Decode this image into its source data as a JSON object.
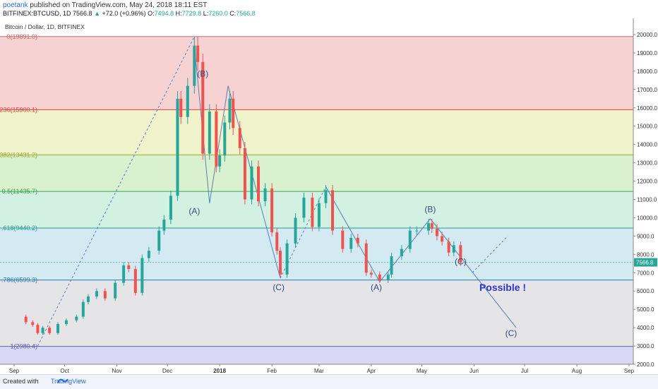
{
  "header": {
    "user": "poetank",
    "published_text": "published on TradingView.com, May 24, 2018 18:11 EST",
    "symbol": "BITFINEX:BTCUSD, 1D",
    "last_price": "7566.8",
    "change": "+72.0 (+0.96%)",
    "open_label": "O:",
    "open": "7494.8",
    "high_label": "H:",
    "high": "7729.8",
    "low_label": "L:",
    "low": "7260.0",
    "close_label": "C:",
    "close": "7566.8"
  },
  "footer": {
    "created_with": "Created with",
    "brand": "TradingView"
  },
  "colors": {
    "up": "#26a69a",
    "down": "#ef5350",
    "wave": "#5b7fb8",
    "text_blue": "#2e35c4"
  },
  "chart_data": {
    "type": "candlestick",
    "title": "Bitcoin / Dollar, 1D, BITFINEX",
    "ylim": [
      2000,
      20500
    ],
    "y_ticks": [
      "2000.0",
      "3000.0",
      "4000.0",
      "5000.0",
      "6000.0",
      "7000.0",
      "8000.0",
      "9000.0",
      "10000.0",
      "11000.0",
      "12000.0",
      "13000.0",
      "14000.0",
      "15000.0",
      "16000.0",
      "17000.0",
      "18000.0",
      "19000.0",
      "20000.0"
    ],
    "x_ticks": [
      "Sep",
      "Oct",
      "Nov",
      "Dec",
      "2018",
      "Feb",
      "Mar",
      "Apr",
      "May",
      "Jun",
      "Jul",
      "Aug",
      "Sep"
    ],
    "current_price_label": "7566.8",
    "fib_levels": [
      {
        "label": "0(19891.0)",
        "value": 19891.0,
        "color": "#c86b6b"
      },
      {
        "label": "236(15900.1)",
        "value": 15900.1,
        "color": "#e0403a"
      },
      {
        "label": "382(13431.2)",
        "value": 13431.2,
        "color": "#9aaa2a"
      },
      {
        "label": "0.5(11435.7)",
        "value": 11435.7,
        "color": "#3aa34a"
      },
      {
        "label": ".618(9440.2)",
        "value": 9440.2,
        "color": "#2a9a9a"
      },
      {
        "label": ".786(6599.3)",
        "value": 6599.3,
        "color": "#2a7ab0"
      },
      {
        "label": "1(2980.4)",
        "value": 2980.4,
        "color": "#5b5fb0"
      }
    ],
    "fib_zones": [
      {
        "from": 15900.1,
        "to": 19891.0,
        "color": "#f6d2d2"
      },
      {
        "from": 13431.2,
        "to": 15900.1,
        "color": "#f0f2cc"
      },
      {
        "from": 11435.7,
        "to": 13431.2,
        "color": "#d9f1cf"
      },
      {
        "from": 9440.2,
        "to": 11435.7,
        "color": "#d2f1e3"
      },
      {
        "from": 6599.3,
        "to": 9440.2,
        "color": "#d3eaf3"
      },
      {
        "from": 2980.4,
        "to": 6599.3,
        "color": "#e5e5e8"
      },
      {
        "from": 2000,
        "to": 2980.4,
        "color": "#d9d8f2"
      }
    ],
    "closes": [
      [
        "2017-09-05",
        4600
      ],
      [
        "2017-09-08",
        4300
      ],
      [
        "2017-09-12",
        4150
      ],
      [
        "2017-09-15",
        3700
      ],
      [
        "2017-09-18",
        4000
      ],
      [
        "2017-09-22",
        3700
      ],
      [
        "2017-09-27",
        4200
      ],
      [
        "2017-10-02",
        4400
      ],
      [
        "2017-10-08",
        4600
      ],
      [
        "2017-10-12",
        5400
      ],
      [
        "2017-10-15",
        5700
      ],
      [
        "2017-10-20",
        6000
      ],
      [
        "2017-10-25",
        5600
      ],
      [
        "2017-10-31",
        6450
      ],
      [
        "2017-11-05",
        7400
      ],
      [
        "2017-11-08",
        7200
      ],
      [
        "2017-11-12",
        5900
      ],
      [
        "2017-11-16",
        7800
      ],
      [
        "2017-11-20",
        8200
      ],
      [
        "2017-11-26",
        9300
      ],
      [
        "2017-11-29",
        9900
      ],
      [
        "2017-12-03",
        11200
      ],
      [
        "2017-12-07",
        16500
      ],
      [
        "2017-12-09",
        15500
      ],
      [
        "2017-12-13",
        17200
      ],
      [
        "2017-12-17",
        19400
      ],
      [
        "2017-12-19",
        18500
      ],
      [
        "2017-12-22",
        13500
      ],
      [
        "2017-12-26",
        15800
      ],
      [
        "2017-12-30",
        12800
      ],
      [
        "2018-01-01",
        13400
      ],
      [
        "2018-01-04",
        15200
      ],
      [
        "2018-01-07",
        16500
      ],
      [
        "2018-01-09",
        14900
      ],
      [
        "2018-01-13",
        13800
      ],
      [
        "2018-01-16",
        11000
      ],
      [
        "2018-01-20",
        12800
      ],
      [
        "2018-01-24",
        10900
      ],
      [
        "2018-01-28",
        11600
      ],
      [
        "2018-02-01",
        9200
      ],
      [
        "2018-02-04",
        8200
      ],
      [
        "2018-02-06",
        6900
      ],
      [
        "2018-02-10",
        8600
      ],
      [
        "2018-02-15",
        10000
      ],
      [
        "2018-02-20",
        11100
      ],
      [
        "2018-02-25",
        9500
      ],
      [
        "2018-03-01",
        10800
      ],
      [
        "2018-03-05",
        11500
      ],
      [
        "2018-03-09",
        9300
      ],
      [
        "2018-03-15",
        8300
      ],
      [
        "2018-03-20",
        8900
      ],
      [
        "2018-03-24",
        8600
      ],
      [
        "2018-03-29",
        7000
      ],
      [
        "2018-04-01",
        6900
      ],
      [
        "2018-04-06",
        6600
      ],
      [
        "2018-04-11",
        6900
      ],
      [
        "2018-04-13",
        7900
      ],
      [
        "2018-04-19",
        8300
      ],
      [
        "2018-04-24",
        9300
      ],
      [
        "2018-04-28",
        9300
      ],
      [
        "2018-05-05",
        9700
      ],
      [
        "2018-05-07",
        9400
      ],
      [
        "2018-05-10",
        9000
      ],
      [
        "2018-05-13",
        8700
      ],
      [
        "2018-05-17",
        8100
      ],
      [
        "2018-05-20",
        8500
      ],
      [
        "2018-05-24",
        7566.8
      ]
    ],
    "wave_labels": [
      {
        "text": "(B)",
        "date": "2017-12-22",
        "value": 17700
      },
      {
        "text": "(A)",
        "date": "2017-12-17",
        "value": 10200
      },
      {
        "text": "(C)",
        "date": "2018-02-05",
        "value": 6050
      },
      {
        "text": "(A)",
        "date": "2018-04-04",
        "value": 6050
      },
      {
        "text": "(B)",
        "date": "2018-05-06",
        "value": 10300
      },
      {
        "text": "(C)",
        "date": "2018-05-24",
        "value": 7450
      },
      {
        "text": "(C)",
        "date": "2018-06-23",
        "value": 3550
      }
    ],
    "annotation": "Possible !"
  }
}
